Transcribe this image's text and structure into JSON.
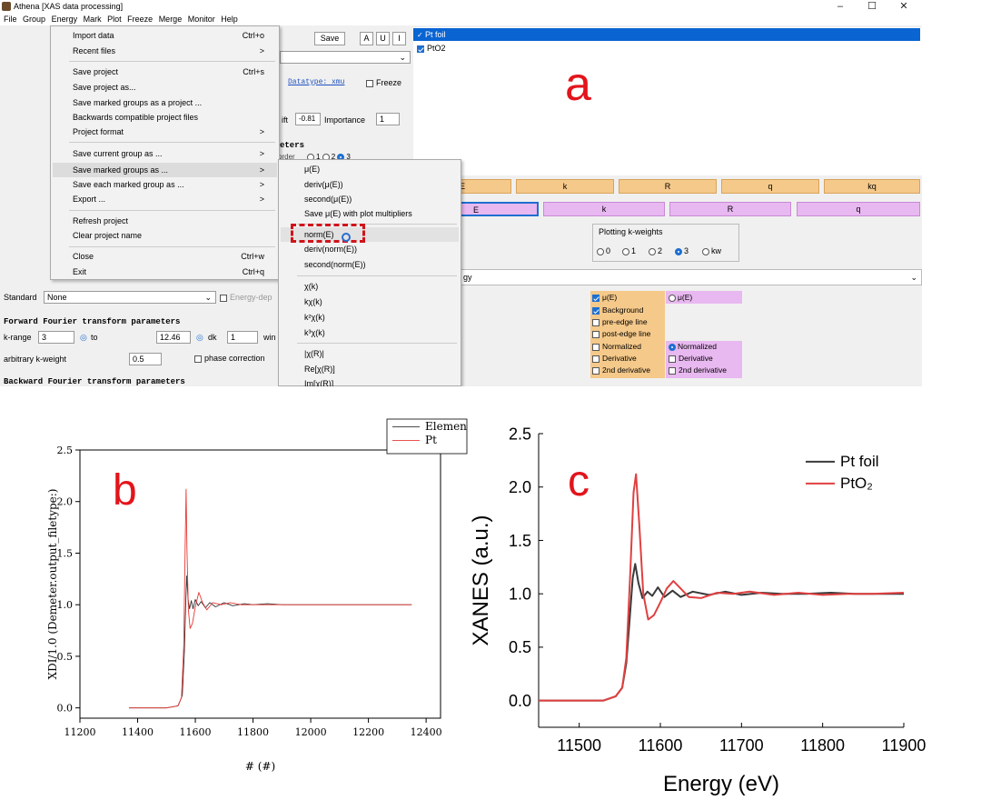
{
  "athena": {
    "window_title": "Athena [XAS data processing]",
    "window_buttons": [
      "–",
      "☐",
      "✕"
    ],
    "menubar": [
      "File",
      "Group",
      "Energy",
      "Mark",
      "Plot",
      "Freeze",
      "Merge",
      "Monitor",
      "Help"
    ],
    "toolbar": {
      "save": "Save",
      "a": "A",
      "u": "U",
      "i": "I"
    },
    "groups": [
      {
        "name": "Pt foil",
        "checked": true,
        "selected": true
      },
      {
        "name": "PtO2",
        "checked": true,
        "selected": false
      }
    ],
    "panel_label": "a",
    "left_panel": {
      "datatype": "Datatype: xmu",
      "freeze": "Freeze",
      "shift_label": "ift",
      "shift_value": "-0.81",
      "importance_label": "Importance",
      "importance_value": "1",
      "params_header": "eters",
      "order_label": "order",
      "order_options": [
        "1",
        "2",
        "3"
      ],
      "standard_label": "Standard",
      "standard_value": "None",
      "energy_dep": "Energy-dep",
      "fft_header": "Forward Fourier transform parameters",
      "krange_label": "k-range",
      "krange_from": "3",
      "krange_to_label": "to",
      "krange_to": "12.46",
      "dk_label": "dk",
      "dk_value": "1",
      "win_label": "win",
      "akw_label": "arbitrary k-weight",
      "akw_value": "0.5",
      "phase_correction": "phase correction",
      "bft_header": "Backward Fourier transform parameters"
    },
    "file_menu": {
      "items": [
        {
          "label": "Import data",
          "shortcut": "Ctrl+o"
        },
        {
          "label": "Recent files",
          "shortcut": ">"
        },
        {
          "label": "Save project",
          "shortcut": "Ctrl+s"
        },
        {
          "label": "Save project as...",
          "shortcut": ""
        },
        {
          "label": "Save marked groups as a project ...",
          "shortcut": ""
        },
        {
          "label": "Backwards compatible project files",
          "shortcut": ""
        },
        {
          "label": "Project format",
          "shortcut": ">"
        },
        {
          "label": "Save current group as ...",
          "shortcut": ">"
        },
        {
          "label": "Save marked groups as ...",
          "shortcut": ">"
        },
        {
          "label": "Save each marked group as ...",
          "shortcut": ">"
        },
        {
          "label": "Export ...",
          "shortcut": ">"
        },
        {
          "label": "Refresh project",
          "shortcut": ""
        },
        {
          "label": "Clear project name",
          "shortcut": ""
        },
        {
          "label": "Close",
          "shortcut": "Ctrl+w"
        },
        {
          "label": "Exit",
          "shortcut": "Ctrl+q"
        }
      ]
    },
    "submenu": {
      "items": [
        "μ(E)",
        "deriv(μ(E))",
        "second(μ(E))",
        "Save μ(E) with plot multipliers",
        "norm(E)",
        "deriv(norm(E))",
        "second(norm(E))",
        "χ(k)",
        "kχ(k)",
        "k²χ(k)",
        "k³χ(k)",
        "|χ(R)|",
        "Re[χ(R)]",
        "Im[χ(R)]"
      ]
    },
    "plot_buttons": {
      "orange": [
        "E",
        "k",
        "R",
        "q",
        "kq"
      ],
      "pink": [
        "E",
        "k",
        "R",
        "q"
      ]
    },
    "kweights": {
      "title": "Plotting k-weights",
      "options": [
        "0",
        "1",
        "2",
        "3",
        "kw"
      ],
      "selected": "3"
    },
    "energy_row_label": "gy",
    "plot_options": {
      "col1": [
        {
          "label": "μ(E)",
          "checked": true
        },
        {
          "label": "Background",
          "checked": true
        },
        {
          "label": "pre-edge line",
          "checked": false
        },
        {
          "label": "post-edge line",
          "checked": false
        },
        {
          "label": "Normalized",
          "checked": false
        },
        {
          "label": "Derivative",
          "checked": false
        },
        {
          "label": "2nd derivative",
          "checked": false
        }
      ],
      "col2": [
        {
          "label": "μ(E)",
          "checked": false
        },
        {
          "label": "Normalized",
          "checked": true
        },
        {
          "label": "Derivative",
          "checked": false
        },
        {
          "label": "2nd derivative",
          "checked": false
        }
      ]
    }
  },
  "chart_data": [
    {
      "type": "line",
      "panel_label": "b",
      "title": "",
      "xlabel": "# (#)",
      "ylabel": "XDI/1.0 (Demeter.output_filetype:)",
      "xlim": [
        11200,
        12450
      ],
      "ylim": [
        -0.1,
        2.5
      ],
      "xticks": [
        "11200",
        "11400",
        "11600",
        "11800",
        "12000",
        "12200",
        "12400"
      ],
      "yticks": [
        "0.0",
        "0.5",
        "1.0",
        "1.5",
        "2.0",
        "2.5"
      ],
      "legend_position": "top-right",
      "series": [
        {
          "name": "Elemen",
          "color": "#333333",
          "x": [
            11370,
            11500,
            11540,
            11555,
            11562,
            11567,
            11570,
            11575,
            11580,
            11586,
            11592,
            11600,
            11610,
            11620,
            11635,
            11650,
            11670,
            11700,
            11730,
            11770,
            11800,
            11850,
            11900,
            12000,
            12100,
            12200,
            12350
          ],
          "y": [
            0.0,
            0.0,
            0.02,
            0.12,
            0.55,
            1.05,
            1.28,
            1.05,
            0.96,
            1.04,
            0.96,
            1.05,
            0.99,
            1.03,
            0.97,
            1.02,
            0.98,
            1.02,
            0.99,
            1.01,
            1.0,
            1.01,
            1.0,
            1.0,
            1.0,
            1.0,
            1.0
          ]
        },
        {
          "name": "Pt",
          "color": "#e53935",
          "x": [
            11370,
            11500,
            11540,
            11552,
            11560,
            11565,
            11568,
            11571,
            11576,
            11582,
            11590,
            11600,
            11612,
            11625,
            11640,
            11660,
            11690,
            11720,
            11760,
            11800,
            11850,
            11900,
            12000,
            12100,
            12200,
            12350
          ],
          "y": [
            0.0,
            0.0,
            0.02,
            0.1,
            0.6,
            1.6,
            2.12,
            1.55,
            0.95,
            0.77,
            0.82,
            0.98,
            1.12,
            1.02,
            0.95,
            1.02,
            1.0,
            1.02,
            1.0,
            1.0,
            1.0,
            1.0,
            1.0,
            1.0,
            1.0,
            1.0
          ]
        }
      ]
    },
    {
      "type": "line",
      "panel_label": "c",
      "title": "",
      "xlabel": "Energy (eV)",
      "ylabel": "XANES (a.u.)",
      "xlim": [
        11450,
        11900
      ],
      "ylim": [
        -0.25,
        2.5
      ],
      "xticks": [
        "11500",
        "11600",
        "11700",
        "11800",
        "11900"
      ],
      "yticks": [
        "0.0",
        "0.5",
        "1.0",
        "1.5",
        "2.0",
        "2.5"
      ],
      "legend_position": "top-right",
      "series": [
        {
          "name": "Pt foil",
          "color": "#3a3a3a",
          "x": [
            11450,
            11500,
            11530,
            11545,
            11553,
            11558,
            11562,
            11566,
            11569,
            11573,
            11578,
            11584,
            11590,
            11597,
            11605,
            11615,
            11625,
            11640,
            11660,
            11680,
            11700,
            11725,
            11750,
            11780,
            11810,
            11840,
            11870,
            11900
          ],
          "y": [
            0.0,
            0.0,
            0.0,
            0.04,
            0.12,
            0.35,
            0.75,
            1.15,
            1.28,
            1.1,
            0.96,
            1.02,
            0.98,
            1.06,
            0.97,
            1.03,
            0.97,
            1.02,
            0.99,
            1.02,
            0.99,
            1.01,
            1.0,
            1.0,
            1.01,
            1.0,
            1.0,
            1.0
          ]
        },
        {
          "name": "PtO₂",
          "color": "#e04040",
          "x": [
            11450,
            11500,
            11530,
            11545,
            11553,
            11558,
            11563,
            11567,
            11570,
            11574,
            11579,
            11585,
            11592,
            11600,
            11608,
            11616,
            11625,
            11635,
            11650,
            11670,
            11690,
            11710,
            11740,
            11770,
            11800,
            11830,
            11860,
            11900
          ],
          "y": [
            0.0,
            0.0,
            0.0,
            0.04,
            0.12,
            0.4,
            1.2,
            1.95,
            2.12,
            1.65,
            1.0,
            0.76,
            0.8,
            0.92,
            1.05,
            1.12,
            1.05,
            0.97,
            0.96,
            1.01,
            1.0,
            1.02,
            0.99,
            1.01,
            0.99,
            1.0,
            1.0,
            1.01
          ]
        }
      ]
    }
  ]
}
